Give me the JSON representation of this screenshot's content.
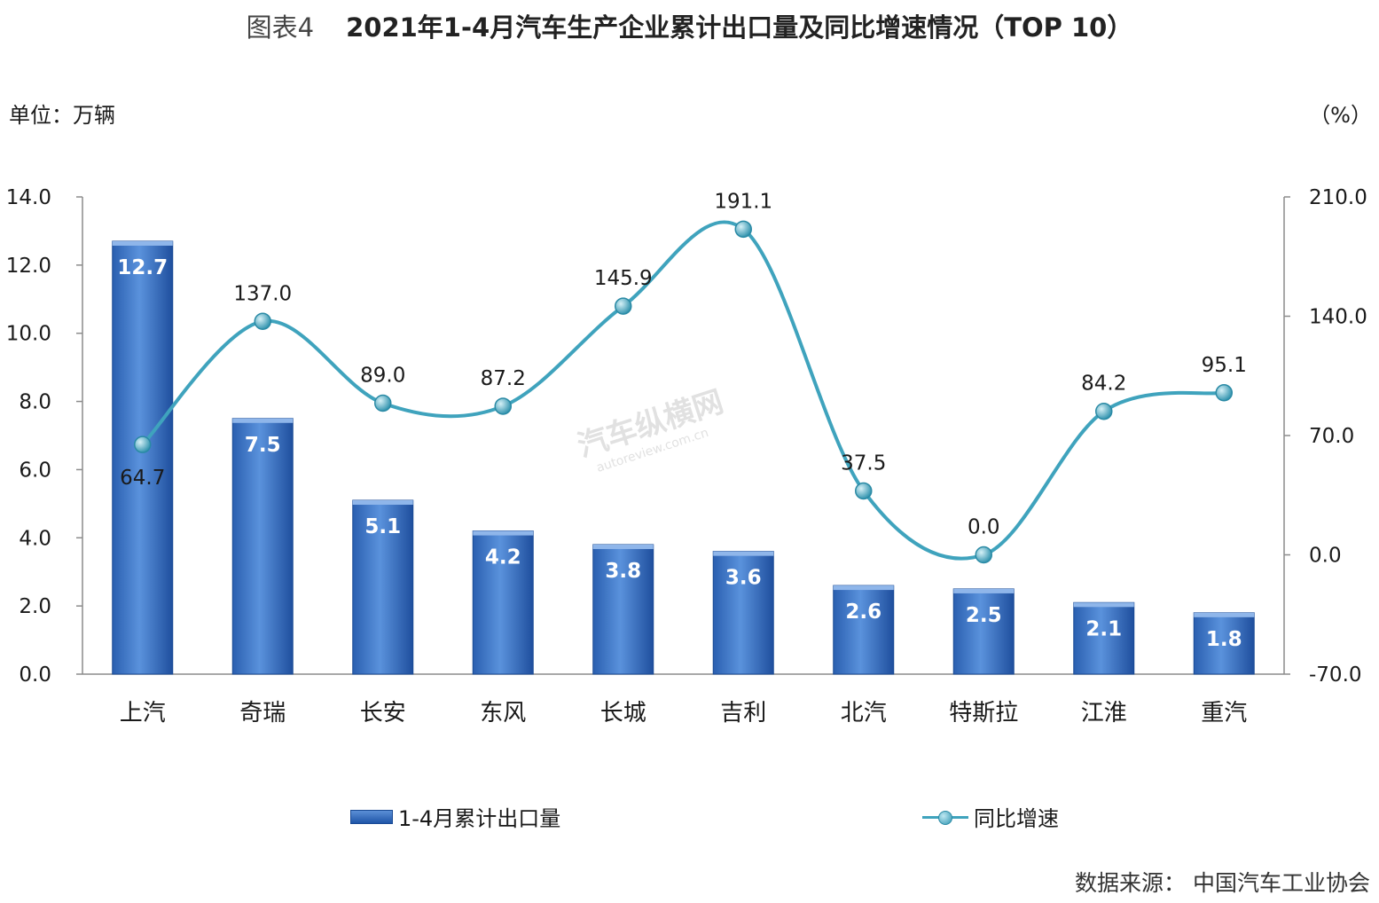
{
  "title": {
    "figure_no": "图表4",
    "text": "2021年1-4月汽车生产企业累计出口量及同比增速情况（TOP 10）"
  },
  "unit_left": "单位：万辆",
  "unit_right": "（%）",
  "source": "数据来源：  中国汽车工业协会",
  "watermark": {
    "brand": "汽车纵横网",
    "url": "autoreview.com.cn"
  },
  "legend": {
    "bar": "1-4月累计出口量",
    "line": "同比增速"
  },
  "colors": {
    "bar_top": "#5b8fd6",
    "bar_bottom": "#1f56a8",
    "line": "#3fa3bd",
    "marker": "#2f95b1"
  },
  "chart_data": {
    "type": "bar",
    "categories": [
      "上汽",
      "奇瑞",
      "长安",
      "东风",
      "长城",
      "吉利",
      "北汽",
      "特斯拉",
      "江淮",
      "重汽"
    ],
    "series": [
      {
        "name": "1-4月累计出口量",
        "type": "bar",
        "axis": "left",
        "values": [
          12.7,
          7.5,
          5.1,
          4.2,
          3.8,
          3.6,
          2.6,
          2.5,
          2.1,
          1.8
        ],
        "labels": [
          "12.7",
          "7.5",
          "5.1",
          "4.2",
          "3.8",
          "3.6",
          "2.6",
          "2.5",
          "2.1",
          "1.8"
        ]
      },
      {
        "name": "同比增速",
        "type": "line",
        "axis": "right",
        "values": [
          64.7,
          137.0,
          89.0,
          87.2,
          145.9,
          191.1,
          37.5,
          0.0,
          84.2,
          95.1
        ],
        "labels": [
          "64.7",
          "137.0",
          "89.0",
          "87.2",
          "145.9",
          "191.1",
          "37.5",
          "0.0",
          "84.2",
          "95.1"
        ]
      }
    ],
    "y_left": {
      "range": [
        0,
        14
      ],
      "ticks": [
        "0.0",
        "2.0",
        "4.0",
        "6.0",
        "8.0",
        "10.0",
        "12.0",
        "14.0"
      ]
    },
    "y_right": {
      "range": [
        -70,
        210
      ],
      "ticks": [
        "-70.0",
        "0.0",
        "70.0",
        "140.0",
        "210.0"
      ]
    },
    "grid": false,
    "legend_position": "bottom"
  }
}
